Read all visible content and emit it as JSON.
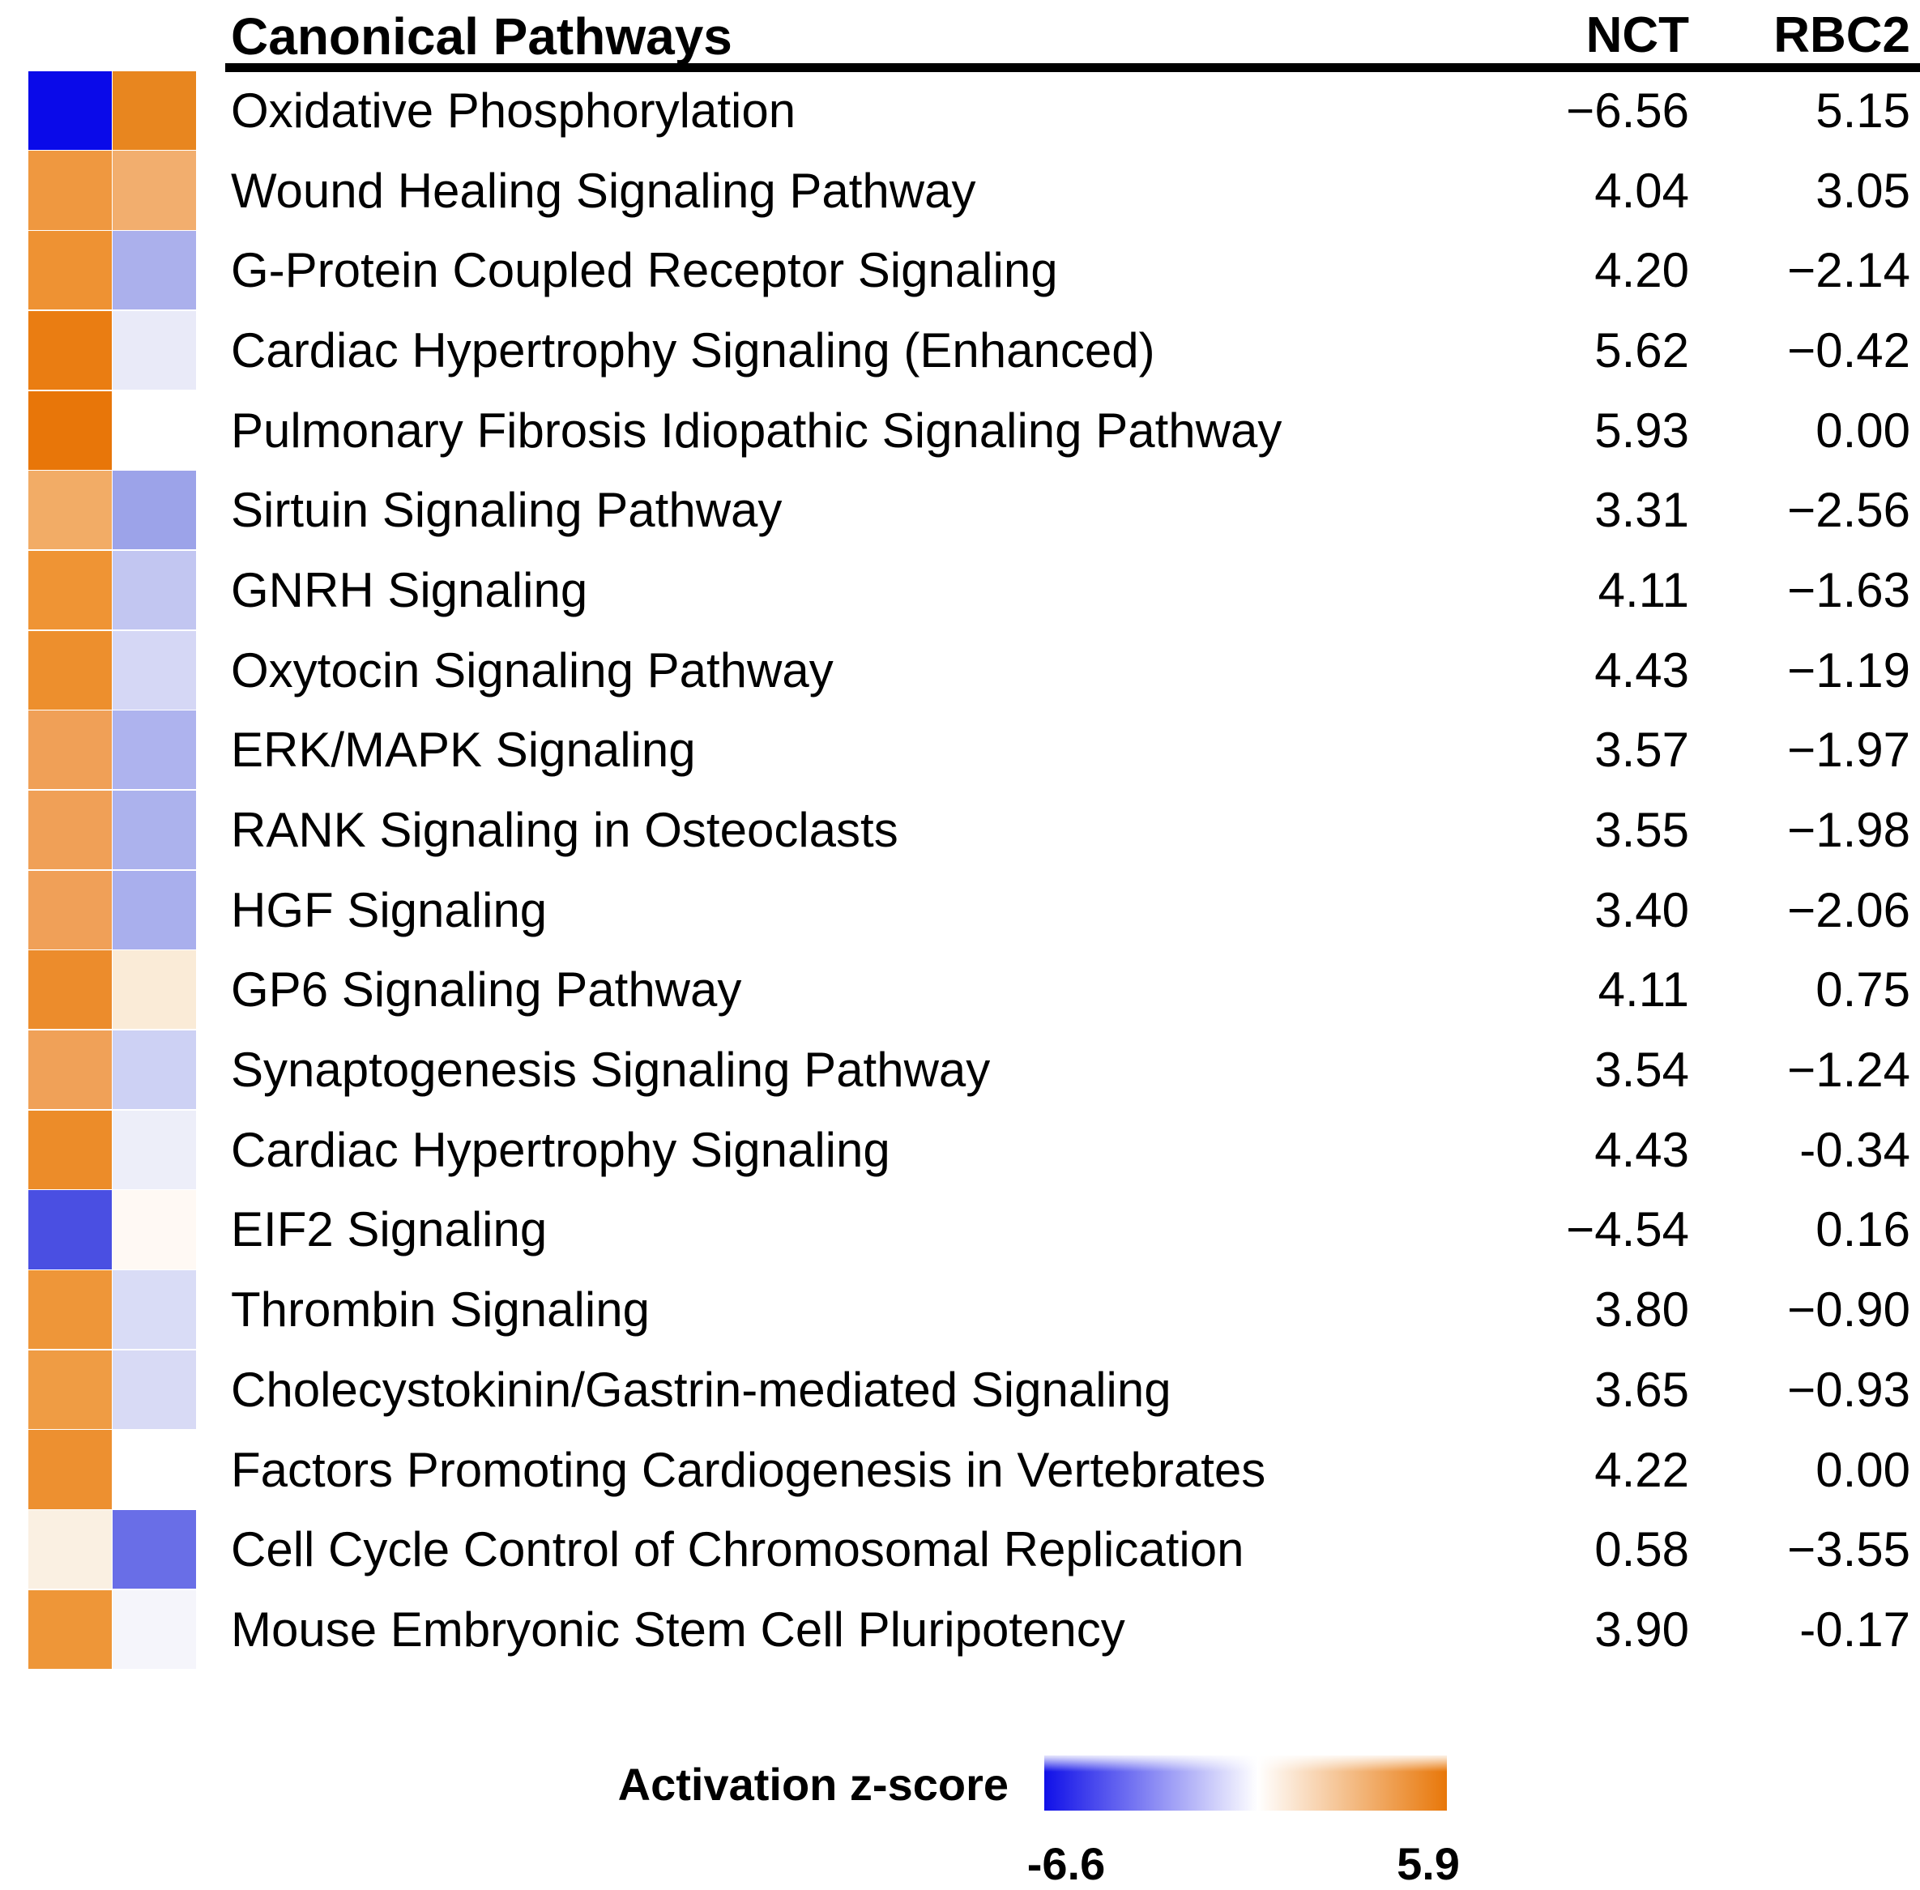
{
  "title": "Canonical Pathways",
  "columns": {
    "col1": "NCT",
    "col2": "RBC2"
  },
  "legend": {
    "label": "Activation z-score",
    "min_label": "-6.6",
    "max_label": "5.9",
    "min_color": "#1010E8",
    "mid_color": "#FFFFFF",
    "max_color": "#E87709"
  },
  "chart_data": {
    "type": "heatmap",
    "title": "Canonical Pathways",
    "columns": [
      "NCT",
      "RBC2"
    ],
    "colorbar": {
      "label": "Activation z-score",
      "min": -6.6,
      "max": 5.9,
      "min_color": "#1010E8",
      "mid_color": "#FFFFFF",
      "max_color": "#E87709"
    },
    "rows": [
      {
        "pathway": "Oxidative Phosphorylation",
        "nct": -6.56,
        "rbc2": 5.15,
        "nct_text": "−6.56",
        "rbc2_text": "5.15",
        "nct_color": "#0A0AE9",
        "rbc2_color": "#E8861F"
      },
      {
        "pathway": "Wound Healing Signaling Pathway",
        "nct": 4.04,
        "rbc2": 3.05,
        "nct_text": "4.04",
        "rbc2_text": "3.05",
        "nct_color": "#EF9840",
        "rbc2_color": "#F2AE6E"
      },
      {
        "pathway": "G-Protein Coupled Receptor Signaling",
        "nct": 4.2,
        "rbc2": -2.14,
        "nct_text": "4.20",
        "rbc2_text": "−2.14",
        "nct_color": "#EE9233",
        "rbc2_color": "#ABB0EC"
      },
      {
        "pathway": "Cardiac Hypertrophy Signaling (Enhanced)",
        "nct": 5.62,
        "rbc2": -0.42,
        "nct_text": "5.62",
        "rbc2_text": "−0.42",
        "nct_color": "#EA7D12",
        "rbc2_color": "#E9EAF8"
      },
      {
        "pathway": "Pulmonary Fibrosis Idiopathic Signaling Pathway",
        "nct": 5.93,
        "rbc2": 0.0,
        "nct_text": "5.93",
        "rbc2_text": "0.00",
        "nct_color": "#E87609",
        "rbc2_color": "#FFFFFF"
      },
      {
        "pathway": "Sirtuin Signaling Pathway",
        "nct": 3.31,
        "rbc2": -2.56,
        "nct_text": "3.31",
        "rbc2_text": "−2.56",
        "nct_color": "#F2AC66",
        "rbc2_color": "#9CA3E9"
      },
      {
        "pathway": "GNRH Signaling",
        "nct": 4.11,
        "rbc2": -1.63,
        "nct_text": "4.11",
        "rbc2_text": "−1.63",
        "nct_color": "#EF9434",
        "rbc2_color": "#C2C6F1"
      },
      {
        "pathway": "Oxytocin Signaling Pathway",
        "nct": 4.43,
        "rbc2": -1.19,
        "nct_text": "4.43",
        "rbc2_text": "−1.19",
        "nct_color": "#ED8F2D",
        "rbc2_color": "#D5D7F5"
      },
      {
        "pathway": "ERK/MAPK Signaling",
        "nct": 3.57,
        "rbc2": -1.97,
        "nct_text": "3.57",
        "rbc2_text": "−1.97",
        "nct_color": "#F0A057",
        "rbc2_color": "#AEB3EE"
      },
      {
        "pathway": "RANK Signaling in Osteoclasts",
        "nct": 3.55,
        "rbc2": -1.98,
        "nct_text": "3.55",
        "rbc2_text": "−1.98",
        "nct_color": "#F0A057",
        "rbc2_color": "#ACB2ED"
      },
      {
        "pathway": "HGF Signaling",
        "nct": 3.4,
        "rbc2": -2.06,
        "nct_text": "3.40",
        "rbc2_text": "−2.06",
        "nct_color": "#F0A058",
        "rbc2_color": "#A9AFED"
      },
      {
        "pathway": "GP6 Signaling Pathway",
        "nct": 4.11,
        "rbc2": 0.75,
        "nct_text": "4.11",
        "rbc2_text": "0.75",
        "nct_color": "#EC8C2C",
        "rbc2_color": "#FAEBD7"
      },
      {
        "pathway": "Synaptogenesis Signaling Pathway",
        "nct": 3.54,
        "rbc2": -1.24,
        "nct_text": "3.54",
        "rbc2_text": "−1.24",
        "nct_color": "#F0A158",
        "rbc2_color": "#CDD1F4"
      },
      {
        "pathway": "Cardiac Hypertrophy Signaling",
        "nct": 4.43,
        "rbc2": -0.34,
        "nct_text": "4.43",
        "rbc2_text": "-0.34",
        "nct_color": "#EC8C29",
        "rbc2_color": "#EDEEF9"
      },
      {
        "pathway": "EIF2 Signaling",
        "nct": -4.54,
        "rbc2": 0.16,
        "nct_text": "−4.54",
        "rbc2_text": "0.16",
        "nct_color": "#4A4FE2",
        "rbc2_color": "#FFF9F4"
      },
      {
        "pathway": "Thrombin Signaling",
        "nct": 3.8,
        "rbc2": -0.9,
        "nct_text": "3.80",
        "rbc2_text": "−0.90",
        "nct_color": "#EE9639",
        "rbc2_color": "#D9DCF6"
      },
      {
        "pathway": "Cholecystokinin/Gastrin-mediated Signaling",
        "nct": 3.65,
        "rbc2": -0.93,
        "nct_text": "3.65",
        "rbc2_text": "−0.93",
        "nct_color": "#EF9C44",
        "rbc2_color": "#D8DAF5"
      },
      {
        "pathway": "Factors Promoting Cardiogenesis in Vertebrates",
        "nct": 4.22,
        "rbc2": 0.0,
        "nct_text": "4.22",
        "rbc2_text": "0.00",
        "nct_color": "#ED9030",
        "rbc2_color": "#FFFFFF"
      },
      {
        "pathway": "Cell Cycle Control of Chromosomal Replication",
        "nct": 0.58,
        "rbc2": -3.55,
        "nct_text": "0.58",
        "rbc2_text": "−3.55",
        "nct_color": "#FAF0E2",
        "rbc2_color": "#696EE7"
      },
      {
        "pathway": "Mouse Embryonic Stem Cell Pluripotency",
        "nct": 3.9,
        "rbc2": -0.17,
        "nct_text": "3.90",
        "rbc2_text": "-0.17",
        "nct_color": "#EE9638",
        "rbc2_color": "#F5F5FB"
      }
    ]
  }
}
